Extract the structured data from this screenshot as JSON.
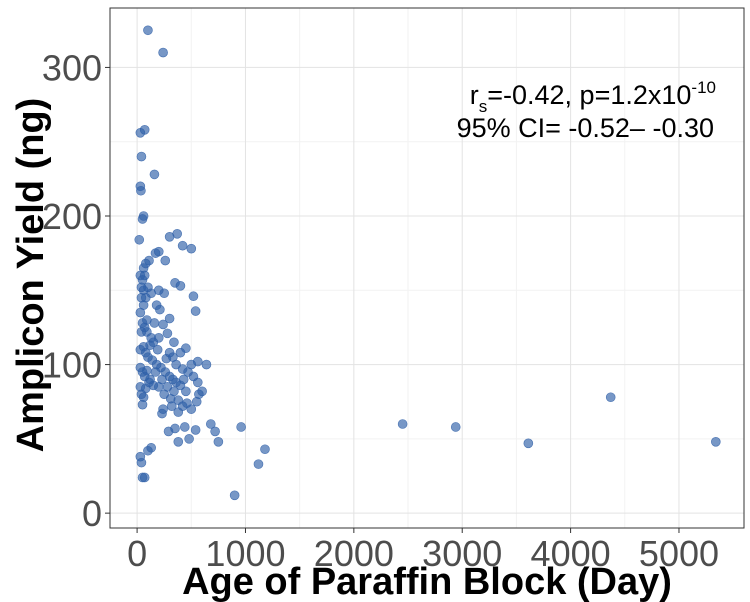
{
  "chart_data": {
    "type": "scatter",
    "xlabel": "Age of Paraffin Block (Day)",
    "ylabel": "Amplicon Yield (ng)",
    "xlim": [
      -250,
      5600
    ],
    "ylim": [
      -10,
      340
    ],
    "xticks": [
      0,
      1000,
      2000,
      3000,
      4000,
      5000
    ],
    "yticks": [
      0,
      100,
      200,
      300
    ],
    "grid": true,
    "point_color": "#2e5fa8",
    "annotation": {
      "line1_r": "r",
      "line1_sub": "s",
      "line1_mid": "=-0.42, p=1.2x10",
      "line1_sup": "-10",
      "line2": "95% CI= -0.52– -0.30"
    },
    "points": [
      [
        100,
        325
      ],
      [
        240,
        310
      ],
      [
        30,
        256
      ],
      [
        70,
        258
      ],
      [
        160,
        228
      ],
      [
        40,
        240
      ],
      [
        30,
        220
      ],
      [
        35,
        217
      ],
      [
        60,
        200
      ],
      [
        50,
        198
      ],
      [
        20,
        184
      ],
      [
        300,
        186
      ],
      [
        370,
        188
      ],
      [
        420,
        180
      ],
      [
        500,
        178
      ],
      [
        200,
        176
      ],
      [
        170,
        175
      ],
      [
        110,
        170
      ],
      [
        80,
        168
      ],
      [
        60,
        165
      ],
      [
        260,
        170
      ],
      [
        30,
        160
      ],
      [
        70,
        160
      ],
      [
        50,
        157
      ],
      [
        100,
        152
      ],
      [
        40,
        152
      ],
      [
        130,
        148
      ],
      [
        80,
        145
      ],
      [
        200,
        150
      ],
      [
        250,
        148
      ],
      [
        350,
        155
      ],
      [
        400,
        153
      ],
      [
        520,
        146
      ],
      [
        540,
        136
      ],
      [
        60,
        140
      ],
      [
        30,
        135
      ],
      [
        90,
        130
      ],
      [
        50,
        128
      ],
      [
        70,
        125
      ],
      [
        40,
        122
      ],
      [
        300,
        131
      ],
      [
        240,
        127
      ],
      [
        280,
        121
      ],
      [
        340,
        115
      ],
      [
        400,
        108
      ],
      [
        450,
        111
      ],
      [
        200,
        118
      ],
      [
        150,
        115
      ],
      [
        120,
        113
      ],
      [
        60,
        112
      ],
      [
        30,
        110
      ],
      [
        80,
        108
      ],
      [
        100,
        105
      ],
      [
        140,
        103
      ],
      [
        180,
        100
      ],
      [
        220,
        98
      ],
      [
        260,
        95
      ],
      [
        300,
        92
      ],
      [
        330,
        90
      ],
      [
        360,
        88
      ],
      [
        400,
        86
      ],
      [
        430,
        90
      ],
      [
        470,
        95
      ],
      [
        500,
        100
      ],
      [
        520,
        92
      ],
      [
        560,
        88
      ],
      [
        600,
        82
      ],
      [
        640,
        100
      ],
      [
        560,
        102
      ],
      [
        30,
        98
      ],
      [
        50,
        95
      ],
      [
        70,
        92
      ],
      [
        90,
        96
      ],
      [
        120,
        90
      ],
      [
        150,
        86
      ],
      [
        40,
        80
      ],
      [
        60,
        78
      ],
      [
        80,
        84
      ],
      [
        110,
        88
      ],
      [
        30,
        85
      ],
      [
        50,
        73
      ],
      [
        250,
        80
      ],
      [
        280,
        85
      ],
      [
        310,
        77
      ],
      [
        340,
        82
      ],
      [
        380,
        76
      ],
      [
        420,
        72
      ],
      [
        460,
        74
      ],
      [
        500,
        70
      ],
      [
        550,
        75
      ],
      [
        570,
        80
      ],
      [
        240,
        70
      ],
      [
        230,
        67
      ],
      [
        320,
        72
      ],
      [
        440,
        58
      ],
      [
        350,
        57
      ],
      [
        290,
        55
      ],
      [
        480,
        50
      ],
      [
        540,
        56
      ],
      [
        380,
        48
      ],
      [
        100,
        42
      ],
      [
        130,
        44
      ],
      [
        680,
        60
      ],
      [
        720,
        55
      ],
      [
        750,
        48
      ],
      [
        960,
        58
      ],
      [
        1180,
        43
      ],
      [
        1120,
        33
      ],
      [
        900,
        12
      ],
      [
        30,
        38
      ],
      [
        40,
        34
      ],
      [
        50,
        24
      ],
      [
        70,
        24
      ],
      [
        2450,
        60
      ],
      [
        2940,
        58
      ],
      [
        3610,
        47
      ],
      [
        4370,
        78
      ],
      [
        5340,
        48
      ],
      [
        180,
        140
      ],
      [
        210,
        137
      ],
      [
        90,
        122
      ],
      [
        160,
        128
      ],
      [
        130,
        118
      ],
      [
        190,
        110
      ],
      [
        170,
        95
      ],
      [
        40,
        145
      ],
      [
        60,
        150
      ],
      [
        330,
        105
      ],
      [
        360,
        100
      ],
      [
        270,
        104
      ],
      [
        300,
        108
      ],
      [
        420,
        97
      ],
      [
        450,
        82
      ],
      [
        230,
        90
      ],
      [
        200,
        85
      ],
      [
        380,
        68
      ]
    ]
  }
}
